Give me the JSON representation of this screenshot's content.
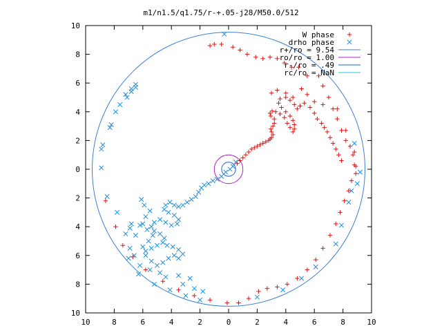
{
  "chart_data": {
    "type": "scatter",
    "title": "m1/n1.5/q1.75/r-+.05-j28/M50.0/512",
    "xlim": [
      -10,
      10
    ],
    "ylim": [
      -10,
      10
    ],
    "xticks": [
      "10",
      "8",
      "6",
      "4",
      "2",
      "0",
      "2",
      "4",
      "6",
      "8",
      "10"
    ],
    "yticks": [
      "10",
      "8",
      "6",
      "4",
      "2",
      "0",
      "2",
      "4",
      "6",
      "8",
      "10"
    ],
    "grid": false,
    "legend_position": "top-right",
    "legend": [
      {
        "label": "W phase",
        "kind": "marker",
        "marker": "plus",
        "color": "#e01010"
      },
      {
        "label": "drho phase",
        "kind": "marker",
        "marker": "cross",
        "color": "#1a8fe0"
      },
      {
        "label": "r+/ro = 9.54",
        "kind": "line",
        "color": "#3a7ed8"
      },
      {
        "label": "ro/ro = 1.00",
        "kind": "line",
        "color": "#b020c0"
      },
      {
        "label": "r-/ro = .49",
        "kind": "line",
        "color": "#1a60d8"
      },
      {
        "label": "rc/ro = NaN",
        "kind": "line",
        "color": "#20c8e0"
      }
    ],
    "circles": [
      {
        "radius": 9.54,
        "color": "#3a7ed8"
      },
      {
        "radius": 1.0,
        "color": "#b020c0"
      },
      {
        "radius": 0.49,
        "color": "#1a60d8"
      }
    ],
    "series": [
      {
        "name": "W phase",
        "marker": "plus",
        "color": "#e01010",
        "points": [
          [
            0.6,
            0.4
          ],
          [
            0.8,
            0.6
          ],
          [
            1.0,
            0.8
          ],
          [
            1.2,
            1.0
          ],
          [
            1.4,
            1.2
          ],
          [
            1.6,
            1.4
          ],
          [
            1.8,
            1.5
          ],
          [
            2.0,
            1.6
          ],
          [
            2.2,
            1.7
          ],
          [
            2.4,
            1.8
          ],
          [
            2.6,
            1.9
          ],
          [
            2.8,
            2.0
          ],
          [
            2.9,
            2.1
          ],
          [
            3.0,
            2.2
          ],
          [
            3.1,
            2.4
          ],
          [
            3.0,
            2.6
          ],
          [
            2.95,
            2.8
          ],
          [
            3.1,
            3.0
          ],
          [
            3.2,
            3.2
          ],
          [
            3.2,
            3.5
          ],
          [
            2.95,
            3.7
          ],
          [
            2.9,
            3.9
          ],
          [
            3.05,
            4.05
          ],
          [
            3.3,
            4.0
          ],
          [
            3.6,
            3.85
          ],
          [
            3.9,
            3.6
          ],
          [
            4.1,
            3.2
          ],
          [
            4.3,
            2.9
          ],
          [
            4.5,
            2.6
          ],
          [
            4.6,
            2.8
          ],
          [
            4.6,
            3.1
          ],
          [
            4.5,
            3.4
          ],
          [
            4.3,
            3.7
          ],
          [
            4.0,
            4.0
          ],
          [
            3.7,
            4.3
          ],
          [
            3.5,
            4.6
          ],
          [
            3.6,
            4.9
          ],
          [
            4.0,
            5.0
          ],
          [
            4.3,
            4.8
          ],
          [
            4.6,
            4.5
          ],
          [
            4.8,
            4.2
          ],
          [
            5.0,
            4.4
          ],
          [
            5.3,
            4.6
          ],
          [
            5.7,
            4.3
          ],
          [
            6.0,
            3.9
          ],
          [
            6.2,
            3.5
          ],
          [
            6.5,
            3.2
          ],
          [
            6.7,
            2.9
          ],
          [
            6.9,
            2.6
          ],
          [
            7.1,
            2.2
          ],
          [
            7.3,
            1.8
          ],
          [
            7.5,
            1.4
          ],
          [
            7.7,
            1.0
          ],
          [
            7.9,
            0.6
          ],
          [
            3.0,
            5.3
          ],
          [
            3.4,
            5.5
          ],
          [
            4.0,
            5.3
          ],
          [
            4.5,
            5.0
          ],
          [
            5.1,
            5.6
          ],
          [
            5.5,
            5.2
          ],
          [
            6.0,
            4.7
          ],
          [
            6.6,
            4.5
          ],
          [
            7.3,
            4.2
          ],
          [
            7.6,
            3.5
          ],
          [
            7.9,
            2.7
          ],
          [
            8.2,
            2.0
          ],
          [
            8.5,
            1.6
          ],
          [
            8.7,
            1.0
          ],
          [
            8.8,
            0.3
          ],
          [
            8.9,
            -0.3
          ],
          [
            8.6,
            -0.8
          ],
          [
            8.4,
            -1.5
          ],
          [
            8.1,
            -2.2
          ],
          [
            7.8,
            -3.0
          ],
          [
            7.5,
            -3.8
          ],
          [
            7.1,
            -4.6
          ],
          [
            6.6,
            -5.5
          ],
          [
            6.1,
            -6.3
          ],
          [
            5.5,
            -7.0
          ],
          [
            4.8,
            -7.6
          ],
          [
            4.1,
            -8.0
          ],
          [
            3.4,
            -8.2
          ],
          [
            2.7,
            -8.3
          ],
          [
            2.1,
            -8.5
          ],
          [
            1.4,
            -9.0
          ],
          [
            0.7,
            -9.3
          ],
          [
            -0.1,
            -9.3
          ],
          [
            -1.3,
            -9.1
          ],
          [
            -2.4,
            -8.8
          ],
          [
            -3.5,
            -8.4
          ],
          [
            -4.6,
            -7.8
          ],
          [
            -5.8,
            -7.0
          ],
          [
            -6.7,
            -6.1
          ],
          [
            -7.4,
            -5.3
          ],
          [
            -7.9,
            -4.0
          ],
          [
            -8.6,
            -2.2
          ],
          [
            -1.3,
            8.6
          ],
          [
            -1.0,
            8.7
          ],
          [
            -0.5,
            8.7
          ],
          [
            0.3,
            8.5
          ],
          [
            0.8,
            8.3
          ],
          [
            1.3,
            8.0
          ],
          [
            1.9,
            7.8
          ],
          [
            2.4,
            7.7
          ],
          [
            2.9,
            7.8
          ],
          [
            3.4,
            7.7
          ],
          [
            3.9,
            7.4
          ],
          [
            4.4,
            7.1
          ],
          [
            4.9,
            7.1
          ],
          [
            5.5,
            6.5
          ],
          [
            6.3,
            6.5
          ],
          [
            6.6,
            5.8
          ],
          [
            7.0,
            5.0
          ],
          [
            7.6,
            4.2
          ],
          [
            8.2,
            2.7
          ],
          [
            8.8,
            1.2
          ],
          [
            8.9,
            0.2
          ]
        ]
      },
      {
        "name": "drho phase",
        "marker": "cross",
        "color": "#1a8fe0",
        "points": [
          [
            0.5,
            0.5
          ],
          [
            0.3,
            0.2
          ],
          [
            0.1,
            0.0
          ],
          [
            -0.2,
            -0.2
          ],
          [
            -0.5,
            -0.5
          ],
          [
            -0.8,
            -0.7
          ],
          [
            -1.1,
            -0.8
          ],
          [
            -1.4,
            -1.0
          ],
          [
            -1.7,
            -1.1
          ],
          [
            -1.9,
            -1.3
          ],
          [
            -2.1,
            -1.6
          ],
          [
            -2.3,
            -1.9
          ],
          [
            -2.6,
            -2.1
          ],
          [
            -2.9,
            -2.3
          ],
          [
            -3.2,
            -2.5
          ],
          [
            -3.5,
            -2.6
          ],
          [
            -3.8,
            -2.5
          ],
          [
            -4.1,
            -2.3
          ],
          [
            -4.4,
            -2.5
          ],
          [
            -4.5,
            -2.8
          ],
          [
            -4.2,
            -3.0
          ],
          [
            -3.8,
            -3.2
          ],
          [
            -3.5,
            -3.5
          ],
          [
            -3.6,
            -3.8
          ],
          [
            -4.0,
            -3.9
          ],
          [
            -4.4,
            -3.7
          ],
          [
            -4.8,
            -3.5
          ],
          [
            -5.2,
            -3.7
          ],
          [
            -5.4,
            -4.0
          ],
          [
            -5.2,
            -4.3
          ],
          [
            -4.8,
            -4.5
          ],
          [
            -4.5,
            -4.8
          ],
          [
            -4.6,
            -5.1
          ],
          [
            -5.0,
            -5.3
          ],
          [
            -5.4,
            -5.5
          ],
          [
            -5.8,
            -5.7
          ],
          [
            -6.0,
            -5.4
          ],
          [
            -5.6,
            -5.0
          ],
          [
            -5.3,
            -4.6
          ],
          [
            -5.7,
            -4.2
          ],
          [
            -6.0,
            -3.8
          ],
          [
            -5.8,
            -3.3
          ],
          [
            -5.5,
            -2.9
          ],
          [
            -5.9,
            -2.5
          ],
          [
            -6.1,
            -2.1
          ],
          [
            -5.8,
            -6.0
          ],
          [
            -5.4,
            -6.4
          ],
          [
            -5.0,
            -6.7
          ],
          [
            -4.6,
            -6.5
          ],
          [
            -4.2,
            -6.2
          ],
          [
            -3.8,
            -6.0
          ],
          [
            -3.5,
            -6.2
          ],
          [
            -3.2,
            -5.9
          ],
          [
            -3.5,
            -5.6
          ],
          [
            -3.9,
            -5.4
          ],
          [
            -4.3,
            -5.3
          ],
          [
            -6.6,
            -6.0
          ],
          [
            -7.0,
            -6.2
          ],
          [
            -6.2,
            -6.7
          ],
          [
            -5.5,
            -7.0
          ],
          [
            -4.8,
            -7.2
          ],
          [
            -4.4,
            -7.5
          ],
          [
            -3.5,
            -7.4
          ],
          [
            -2.7,
            -7.6
          ],
          [
            -3.2,
            -8.0
          ],
          [
            -2.4,
            -8.3
          ],
          [
            -1.8,
            -8.5
          ],
          [
            -2.0,
            -9.1
          ],
          [
            -3.0,
            -8.8
          ],
          [
            -4.1,
            -8.4
          ],
          [
            -5.2,
            -8.0
          ],
          [
            -6.3,
            -7.3
          ],
          [
            -6.9,
            -5.5
          ],
          [
            -7.2,
            -4.5
          ],
          [
            -6.8,
            -3.8
          ],
          [
            -7.8,
            -3.0
          ],
          [
            -8.5,
            -1.9
          ],
          [
            -6.9,
            -4.1
          ],
          [
            -6.2,
            -3.9
          ],
          [
            -6.5,
            -4.6
          ],
          [
            -8.9,
            0.1
          ],
          [
            -8.8,
            1.7
          ],
          [
            -8.9,
            1.4
          ],
          [
            -8.3,
            2.9
          ],
          [
            -8.2,
            3.1
          ],
          [
            -7.9,
            4.0
          ],
          [
            -7.6,
            4.5
          ],
          [
            -7.2,
            5.2
          ],
          [
            -6.8,
            5.6
          ],
          [
            -6.5,
            5.9
          ],
          [
            -6.8,
            5.4
          ],
          [
            -7.1,
            5.0
          ],
          [
            -6.5,
            5.7
          ],
          [
            -0.3,
            9.4
          ],
          [
            2.0,
            -8.9
          ],
          [
            3.8,
            -8.4
          ],
          [
            5.1,
            -7.6
          ],
          [
            6.1,
            -6.8
          ],
          [
            7.5,
            -5.2
          ],
          [
            7.9,
            -3.9
          ],
          [
            8.4,
            -2.3
          ],
          [
            8.6,
            -1.5
          ],
          [
            8.8,
            1.8
          ],
          [
            9.2,
            -0.2
          ],
          [
            9.0,
            -1.0
          ]
        ]
      }
    ]
  }
}
